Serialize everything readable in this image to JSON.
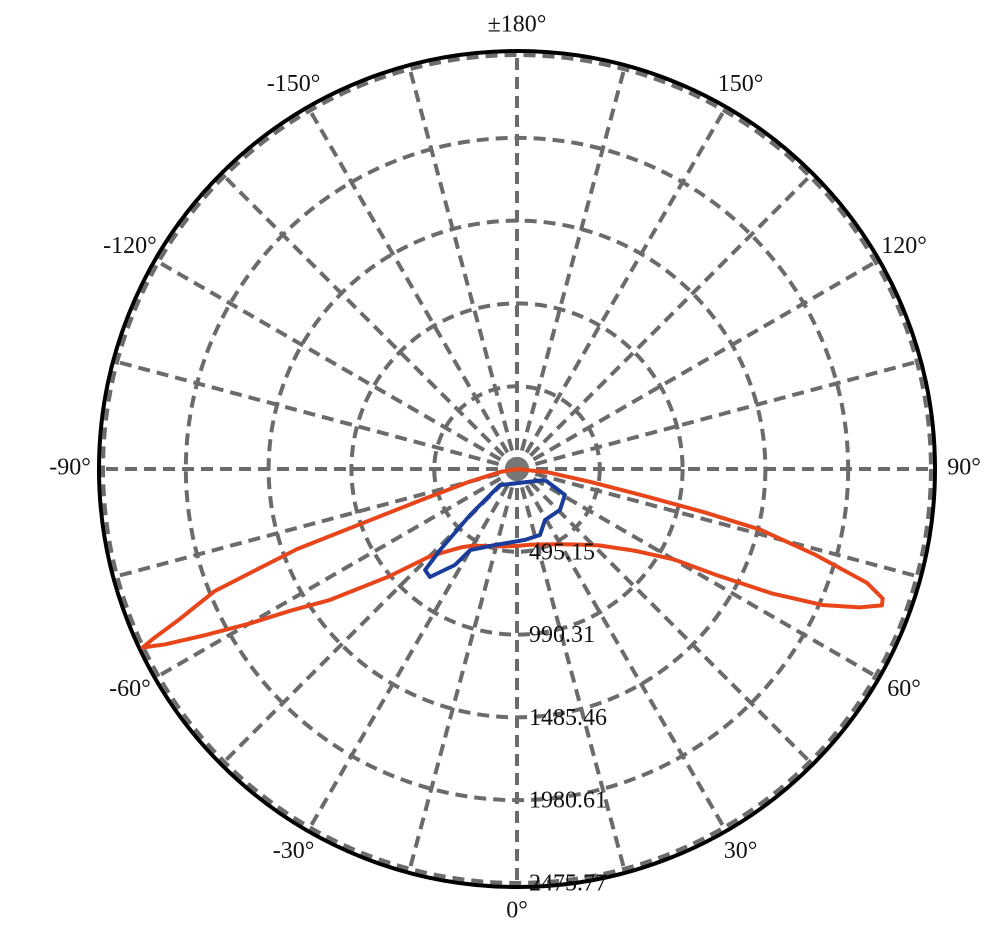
{
  "chart_data": {
    "type": "polar",
    "rlim": [
      0,
      2500
    ],
    "rticks": [
      495.15,
      990.31,
      1485.46,
      1980.61,
      2475.77
    ],
    "thetagrid": [
      0,
      15,
      30,
      45,
      60,
      75,
      90,
      105,
      120,
      135,
      150,
      165,
      180,
      195,
      210,
      225,
      240,
      255,
      270,
      285,
      300,
      315,
      330,
      345
    ],
    "thetaticks": [
      {
        "value": 0,
        "label": "0°"
      },
      {
        "value": 30,
        "label": "30°"
      },
      {
        "value": 60,
        "label": "60°"
      },
      {
        "value": 90,
        "label": "90°"
      },
      {
        "value": 120,
        "label": "120°"
      },
      {
        "value": 150,
        "label": "150°"
      },
      {
        "value": 180,
        "label": "±180°"
      },
      {
        "value": -150,
        "label": "-150°"
      },
      {
        "value": -120,
        "label": "-120°"
      },
      {
        "value": -90,
        "label": "-90°"
      },
      {
        "value": -60,
        "label": "-60°"
      },
      {
        "value": -30,
        "label": "-30°"
      }
    ],
    "grid": true,
    "series": [
      {
        "color": "#e8451a",
        "theta": [
          -90,
          -80,
          -75,
          -72,
          -70,
          -68,
          -66,
          -65,
          -64.5,
          -63.5,
          -62,
          -60,
          -58,
          -55,
          -50,
          -45,
          -40,
          -35,
          -30,
          -20,
          -10,
          0,
          10,
          20,
          30,
          40,
          47,
          55,
          60,
          62,
          64,
          66,
          68,
          69.5,
          70.5,
          72,
          74,
          76,
          77,
          78,
          80,
          84,
          90
        ],
        "r": [
          0,
          100,
          300,
          610,
          1400,
          1950,
          2210,
          2400,
          2480,
          2350,
          2120,
          1850,
          1600,
          1365,
          1000,
          740,
          640,
          570,
          530,
          490,
          470,
          460,
          460,
          480,
          520,
          590,
          670,
          850,
          1080,
          1350,
          1700,
          2000,
          2210,
          2330,
          2320,
          2200,
          1850,
          1500,
          1150,
          800,
          450,
          180,
          0
        ]
      },
      {
        "color": "#1a3d9c",
        "theta": [
          68.5,
          61.6,
          46.4,
          28.8,
          19.2,
          6.4,
          -16,
          -30,
          -32.9,
          -38.9,
          -42.3,
          -43.5,
          -45.6,
          -46.7,
          68.5
        ],
        "r": [
          180,
          326,
          355,
          348,
          418,
          427,
          473,
          560,
          684,
          830,
          817,
          668,
          393,
          140,
          180
        ]
      }
    ]
  }
}
